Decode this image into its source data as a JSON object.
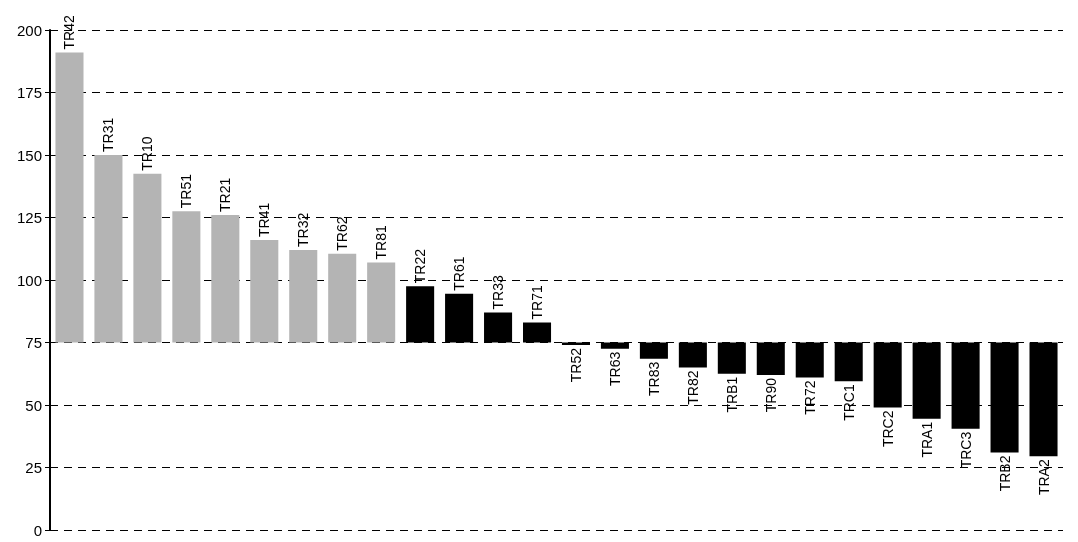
{
  "chart_data": {
    "type": "bar",
    "categories": [
      "TR42",
      "TR31",
      "TR10",
      "TR51",
      "TR21",
      "TR41",
      "TR32",
      "TR62",
      "TR81",
      "TR22",
      "TR61",
      "TR33",
      "TR71",
      "TR52",
      "TR63",
      "TR83",
      "TR82",
      "TRB1",
      "TR90",
      "TR72",
      "TRC1",
      "TRC2",
      "TRA1",
      "TRC3",
      "TRB2",
      "TRA2"
    ],
    "base": [
      75,
      75,
      75,
      75,
      75,
      75,
      75,
      75,
      75,
      75,
      75,
      75,
      75,
      75,
      75,
      75,
      75,
      75,
      75,
      75,
      75,
      75,
      75,
      75,
      75,
      75
    ],
    "values": [
      116,
      75,
      67.5,
      52.5,
      51,
      41,
      37,
      35.5,
      32,
      22.5,
      19.5,
      12,
      8,
      -1,
      -2.5,
      -6.5,
      -10,
      -12.5,
      -13,
      -14,
      -15.5,
      -26,
      -30.5,
      -34.5,
      -44,
      -45.5
    ],
    "colors": [
      "#b4b4b4",
      "#b4b4b4",
      "#b4b4b4",
      "#b4b4b4",
      "#b4b4b4",
      "#b4b4b4",
      "#b4b4b4",
      "#b4b4b4",
      "#b4b4b4",
      "#000000",
      "#000000",
      "#000000",
      "#000000",
      "#000000",
      "#000000",
      "#000000",
      "#000000",
      "#000000",
      "#000000",
      "#000000",
      "#000000",
      "#000000",
      "#000000",
      "#000000",
      "#000000",
      "#000000"
    ],
    "ylim": [
      0,
      200
    ],
    "yticks": [
      0,
      25,
      50,
      75,
      100,
      125,
      150,
      175,
      200
    ],
    "grid": "y"
  }
}
